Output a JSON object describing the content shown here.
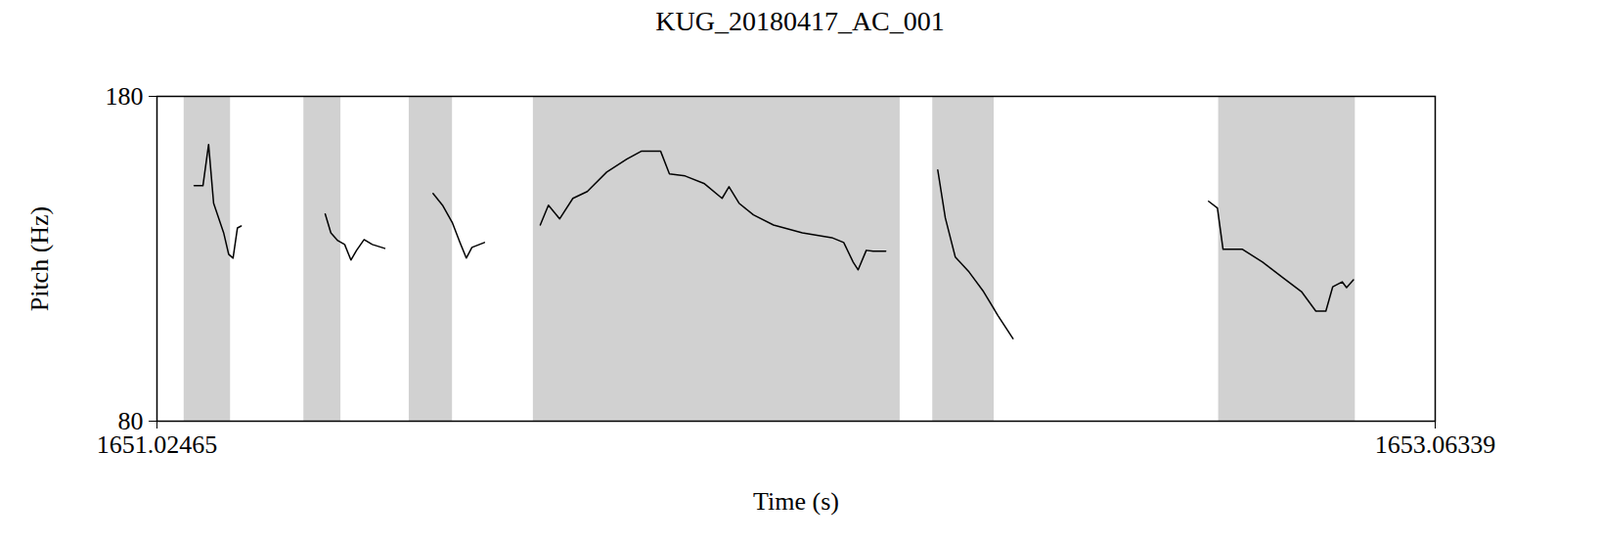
{
  "chart_data": {
    "type": "line",
    "title": "KUG_20180417_AC_001",
    "x_label": "Time (s)",
    "y_label": "Pitch (Hz)",
    "xlim": [
      1651.02465,
      1653.06339
    ],
    "xticks": [
      {
        "value": 1651.02465,
        "label": "1651.02465"
      },
      {
        "value": 1653.06339,
        "label": "1653.06339"
      }
    ],
    "ylim": [
      80,
      180
    ],
    "yticks": [
      80,
      180
    ],
    "grid": false,
    "color": "#000000",
    "voiced_intervals": [
      [
        1651.068,
        1651.142
      ],
      [
        1651.259,
        1651.318
      ],
      [
        1651.427,
        1651.496
      ],
      [
        1651.625,
        1652.21
      ],
      [
        1652.262,
        1652.36
      ],
      [
        1652.718,
        1652.936
      ]
    ],
    "x": [
      1651.084,
      1651.098,
      1651.107,
      1651.115,
      1651.131,
      1651.139,
      1651.146,
      1651.153,
      1651.159,
      null,
      1651.293,
      1651.302,
      1651.313,
      1651.324,
      1651.334,
      1651.343,
      1651.355,
      1651.368,
      1651.388,
      null,
      1651.465,
      1651.48,
      1651.496,
      1651.508,
      1651.518,
      1651.527,
      1651.547,
      null,
      1651.636,
      1651.649,
      1651.667,
      1651.688,
      1651.711,
      1651.742,
      1651.774,
      1651.797,
      1651.828,
      1651.842,
      1651.867,
      1651.898,
      1651.926,
      1651.937,
      1651.953,
      1651.976,
      1652.008,
      1652.054,
      1652.101,
      1652.12,
      1652.135,
      1652.143,
      1652.156,
      1652.167,
      1652.187,
      null,
      1652.27,
      1652.282,
      1652.298,
      1652.32,
      1652.343,
      1652.366,
      1652.39,
      null,
      1652.702,
      1652.716,
      1652.725,
      1652.756,
      1652.788,
      1652.819,
      1652.85,
      1652.873,
      1652.889,
      1652.9,
      1652.915,
      1652.922,
      1652.933
    ],
    "values": [
      152.5,
      152.5,
      165.2,
      147.1,
      138.0,
      131.4,
      130.2,
      139.5,
      140.1,
      null,
      143.8,
      138.0,
      135.6,
      134.4,
      129.6,
      132.6,
      135.9,
      134.4,
      133.2,
      null,
      150.1,
      146.5,
      141.0,
      135.0,
      130.2,
      133.5,
      135.0,
      null,
      140.4,
      146.5,
      142.3,
      148.6,
      150.7,
      156.7,
      160.7,
      163.1,
      163.1,
      156.1,
      155.5,
      153.1,
      148.6,
      152.2,
      147.1,
      143.5,
      140.4,
      138.0,
      136.5,
      135.0,
      129.0,
      126.6,
      132.6,
      132.3,
      132.3,
      null,
      157.3,
      142.6,
      130.5,
      125.9,
      119.9,
      112.5,
      105.4,
      null,
      147.7,
      145.6,
      132.9,
      132.9,
      129.0,
      124.4,
      119.9,
      113.9,
      113.9,
      121.4,
      122.9,
      121.1,
      123.5
    ]
  }
}
